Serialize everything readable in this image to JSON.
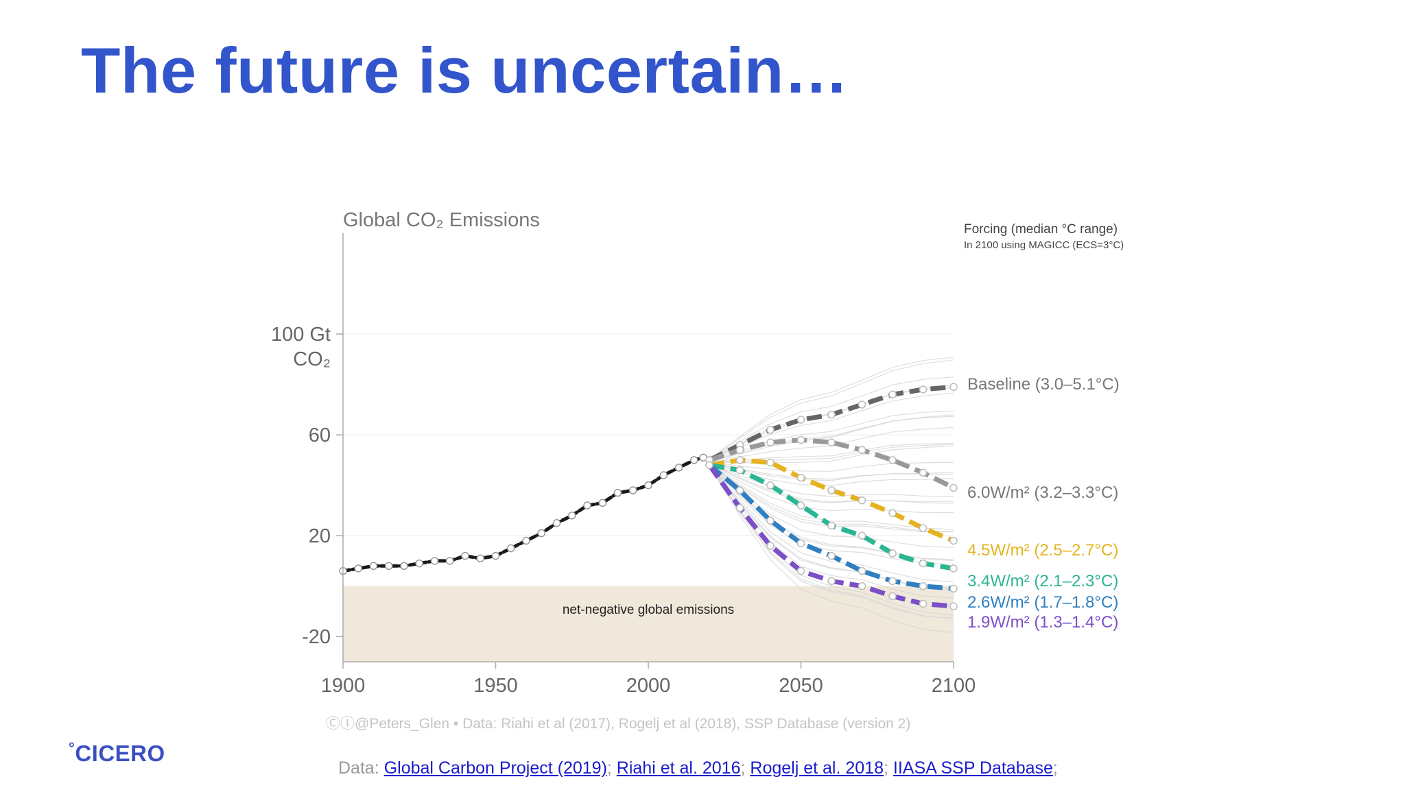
{
  "slide": {
    "title": "The future is uncertain…",
    "logo": {
      "mark": "°",
      "text": "CICERO"
    }
  },
  "sources": {
    "prefix": "Data:",
    "links": [
      {
        "label": "Global Carbon Project (2019)"
      },
      {
        "label": "Riahi et al. 2016"
      },
      {
        "label": "Rogelj et al. 2018"
      },
      {
        "label": "IIASA SSP Database"
      }
    ],
    "separator": ";"
  },
  "chart_data": {
    "type": "line",
    "title": "Global CO₂ Emissions",
    "ylabel": "100 Gt CO₂",
    "xlim": [
      1900,
      2100
    ],
    "ylim": [
      -30,
      140
    ],
    "xticks": [
      1900,
      1950,
      2000,
      2050,
      2100
    ],
    "yticks": [
      {
        "value": 100,
        "label": "100 Gt"
      },
      {
        "value": 60,
        "label": "60"
      },
      {
        "value": 20,
        "label": "20"
      },
      {
        "value": -20,
        "label": "-20"
      }
    ],
    "y_unit_label": "CO₂",
    "legend_title": "Forcing (median °C range)",
    "legend_subtitle": "In 2100 using MAGICC (ECS=3°C)",
    "shaded_region_label": "net-negative global emissions",
    "credit": "ⒸⒾ@Peters_Glen  •  Data: Riahi et al (2017), Rogelj et al (2018), SSP Database (version 2)",
    "historical": {
      "x": [
        1900,
        1905,
        1910,
        1915,
        1920,
        1925,
        1930,
        1935,
        1940,
        1945,
        1950,
        1955,
        1960,
        1965,
        1970,
        1975,
        1980,
        1985,
        1990,
        1995,
        2000,
        2005,
        2010,
        2015,
        2018
      ],
      "y": [
        6,
        7,
        8,
        8,
        8,
        9,
        10,
        10,
        12,
        11,
        12,
        15,
        18,
        21,
        25,
        28,
        32,
        33,
        37,
        38,
        40,
        44,
        47,
        50,
        51
      ],
      "color": "#1a1a1a"
    },
    "series": [
      {
        "name": "Baseline (3.0–5.1°C)",
        "color": "#666666",
        "x": [
          2020,
          2030,
          2040,
          2050,
          2060,
          2070,
          2080,
          2090,
          2100
        ],
        "y": [
          50,
          56,
          62,
          66,
          68,
          72,
          76,
          78,
          79
        ]
      },
      {
        "name": "6.0W/m² (3.2–3.3°C)",
        "color": "#999999",
        "x": [
          2020,
          2030,
          2040,
          2050,
          2060,
          2070,
          2080,
          2090,
          2100
        ],
        "y": [
          50,
          54,
          57,
          58,
          57,
          54,
          50,
          45,
          39
        ]
      },
      {
        "name": "4.5W/m² (2.5–2.7°C)",
        "color": "#e6b320",
        "x": [
          2020,
          2030,
          2040,
          2050,
          2060,
          2070,
          2080,
          2090,
          2100
        ],
        "y": [
          48,
          50,
          49,
          43,
          38,
          34,
          29,
          23,
          18
        ]
      },
      {
        "name": "3.4W/m² (2.1–2.3°C)",
        "color": "#2ab593",
        "x": [
          2020,
          2030,
          2040,
          2050,
          2060,
          2070,
          2080,
          2090,
          2100
        ],
        "y": [
          48,
          46,
          40,
          32,
          24,
          20,
          13,
          9,
          7
        ]
      },
      {
        "name": "2.6W/m² (1.7–1.8°C)",
        "color": "#2f7fc1",
        "x": [
          2020,
          2030,
          2040,
          2050,
          2060,
          2070,
          2080,
          2090,
          2100
        ],
        "y": [
          48,
          38,
          26,
          17,
          12,
          6,
          2,
          0,
          -1
        ]
      },
      {
        "name": "1.9W/m² (1.3–1.4°C)",
        "color": "#7a4fc8",
        "x": [
          2020,
          2030,
          2040,
          2050,
          2060,
          2070,
          2080,
          2090,
          2100
        ],
        "y": [
          48,
          31,
          16,
          6,
          2,
          0,
          -4,
          -7,
          -8
        ]
      }
    ],
    "grid": true,
    "legend": "right"
  }
}
